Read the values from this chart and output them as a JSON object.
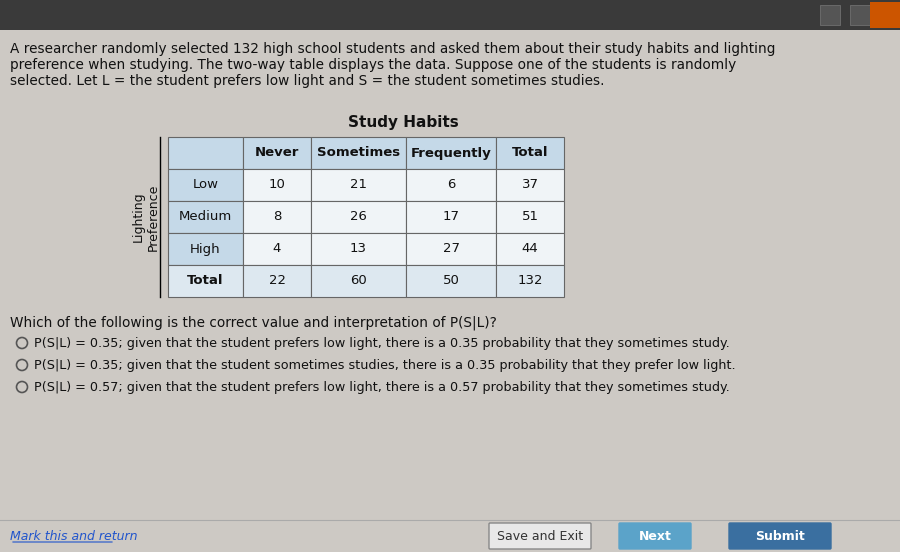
{
  "bg_color": "#cdc9c4",
  "top_bar_color": "#3a3a3a",
  "title_text_line1": "A researcher randomly selected 132 high school students and asked them about their study habits and lighting",
  "title_text_line2": "preference when studying. The two-way table displays the data. Suppose one of the students is randomly",
  "title_text_line3": "selected. Let L = the student prefers low light and S = the student sometimes studies.",
  "table_title": "Study Habits",
  "col_headers": [
    "Never",
    "Sometimes",
    "Frequently",
    "Total"
  ],
  "row_headers": [
    "Low",
    "Medium",
    "High",
    "Total"
  ],
  "table_data": [
    [
      10,
      21,
      6,
      37
    ],
    [
      8,
      26,
      17,
      51
    ],
    [
      4,
      13,
      27,
      44
    ],
    [
      22,
      60,
      50,
      132
    ]
  ],
  "y_label_line1": "Lighting",
  "y_label_line2": "Preference",
  "question": "Which of the following is the correct value and interpretation of P(S|L)?",
  "options": [
    "P(S|L) = 0.35; given that the student prefers low light, there is a 0.35 probability that they sometimes study.",
    "P(S|L) = 0.35; given that the student sometimes studies, there is a 0.35 probability that they prefer low light.",
    "P(S|L) = 0.57; given that the student prefers low light, there is a 0.57 probability that they sometimes study."
  ],
  "bottom_link": "Mark this and return",
  "btn_save": "Save and Exit",
  "btn_next": "Next",
  "btn_submit": "Submit",
  "header_cell_color": "#c5d9e8",
  "row_label_color": "#c5d9e8",
  "data_cell_color": "#f0f4f7",
  "total_row_color": "#dde8f0",
  "table_border_color": "#666666",
  "text_color": "#111111",
  "btn_next_color": "#5ba3c9",
  "btn_submit_color": "#3a6fa0",
  "btn_save_border": "#888888",
  "btn_save_bg": "#e8e8e8",
  "link_color": "#2255cc"
}
